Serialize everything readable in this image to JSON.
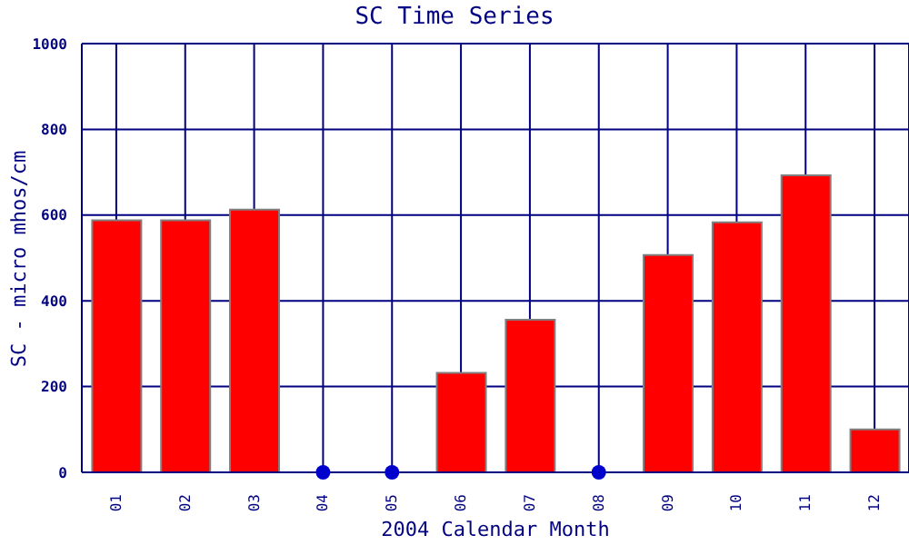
{
  "chart_data": {
    "type": "bar",
    "title": "SC Time Series",
    "xlabel": "2004 Calendar Month",
    "ylabel": "SC - micro mhos/cm",
    "categories": [
      "01",
      "02",
      "03",
      "04",
      "05",
      "06",
      "07",
      "08",
      "09",
      "10",
      "11",
      "12"
    ],
    "series": [
      {
        "color": "#ff0000",
        "values": [
          588,
          588,
          613,
          null,
          null,
          232,
          356,
          null,
          507,
          583,
          693,
          100
        ]
      },
      {
        "type": "scatter",
        "color": "#0000cc",
        "values": [
          null,
          null,
          null,
          0,
          0,
          null,
          null,
          0,
          null,
          null,
          null,
          null
        ]
      }
    ],
    "ylim": [
      0,
      1000
    ],
    "yticks": [
      0,
      200,
      400,
      600,
      800,
      1000
    ],
    "grid": true,
    "marker": "circle"
  }
}
